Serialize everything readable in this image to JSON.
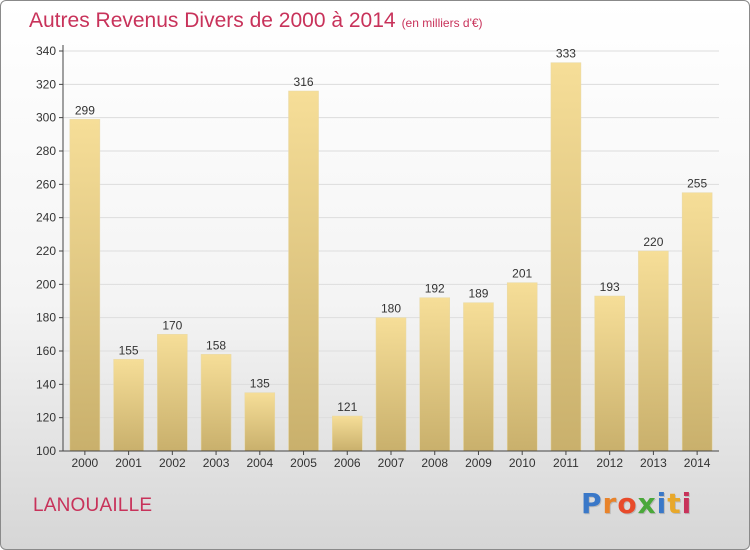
{
  "header": {
    "title": "Autres Revenus Divers de 2000 à 2014",
    "subtitle": "(en milliers d'€)"
  },
  "footer": {
    "city": "LANOUAILLE",
    "logo": "Proxiti",
    "logo_colors": [
      "#3a78c8",
      "#e8832a",
      "#e84a2a",
      "#4aa83a",
      "#3a78c8",
      "#e8a82a",
      "#c8325a"
    ]
  },
  "colors": {
    "title": "#c8325a",
    "bar_light": "#f5dc96",
    "bar_dark": "#c8b06a",
    "grid": "#dddddd",
    "axis": "#444444"
  },
  "chart_data": {
    "type": "bar",
    "title": "Autres Revenus Divers de 2000 à 2014",
    "subtitle": "(en milliers d'€)",
    "categories": [
      "2000",
      "2001",
      "2002",
      "2003",
      "2004",
      "2005",
      "2006",
      "2007",
      "2008",
      "2009",
      "2010",
      "2011",
      "2012",
      "2013",
      "2014"
    ],
    "values": [
      299,
      155,
      170,
      158,
      135,
      316,
      121,
      180,
      192,
      189,
      201,
      333,
      193,
      220,
      255
    ],
    "ylim": [
      100,
      340
    ],
    "yticks": [
      100,
      120,
      140,
      160,
      180,
      200,
      220,
      240,
      260,
      280,
      300,
      320,
      340
    ],
    "grid": true,
    "data_labels": true,
    "legend": "none"
  }
}
